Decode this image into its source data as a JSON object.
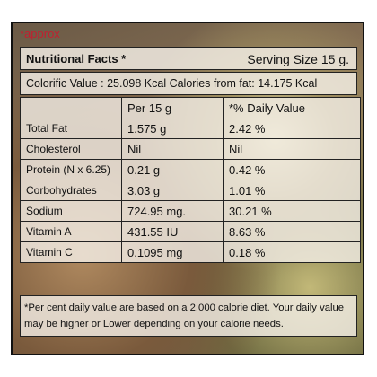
{
  "note": "*approx",
  "header": {
    "title": "Nutritional Facts *",
    "serving": "Serving Size 15 g."
  },
  "calorific": "Colorific Value : 25.098 Kcal Calories from fat: 14.175 Kcal",
  "table": {
    "columns": [
      "Per 15 g",
      "*% Daily Value"
    ],
    "rows": [
      [
        "Total Fat",
        "1.575 g",
        "2.42 %"
      ],
      [
        "Cholesterol",
        "Nil",
        "Nil"
      ],
      [
        "Protein (N x 6.25)",
        "0.21 g",
        "0.42 %"
      ],
      [
        "Corbohydrates",
        "3.03 g",
        "1.01 %"
      ],
      [
        "Sodium",
        "724.95 mg.",
        "30.21 %"
      ],
      [
        "Vitamin A",
        "431.55 IU",
        "8.63 %"
      ],
      [
        "Vitamin C",
        "0.1095 mg",
        "0.18 %"
      ]
    ]
  },
  "footnote": "*Per cent daily value are based on a 2,000 calorie diet. Your daily value may be higher or Lower depending on your calorie needs."
}
